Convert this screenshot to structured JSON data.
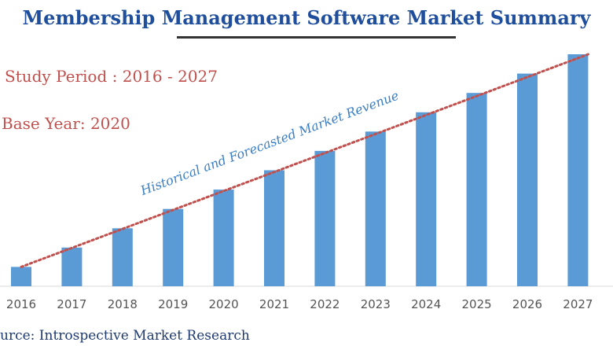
{
  "title": "Membership Management Software Market Summary",
  "study_period": "Study Period : 2016 - 2027",
  "base_year": "Base Year: 2020",
  "source": "urce: Introspective Market Research",
  "colors": {
    "bar": "#5b9bd5",
    "trend": "#c0504d",
    "title": "#1f4e9c"
  },
  "chart_data": {
    "type": "bar",
    "categories": [
      "2016",
      "2017",
      "2018",
      "2019",
      "2020",
      "2021",
      "2022",
      "2023",
      "2024",
      "2025",
      "2026",
      "2027"
    ],
    "values": [
      1,
      2,
      3,
      4,
      5,
      6,
      7,
      8,
      9,
      10,
      11,
      12
    ],
    "annotation": "Historical and Forecasted Market Revenue",
    "trendline": "dotted-linear",
    "ylim": [
      0,
      12
    ]
  }
}
